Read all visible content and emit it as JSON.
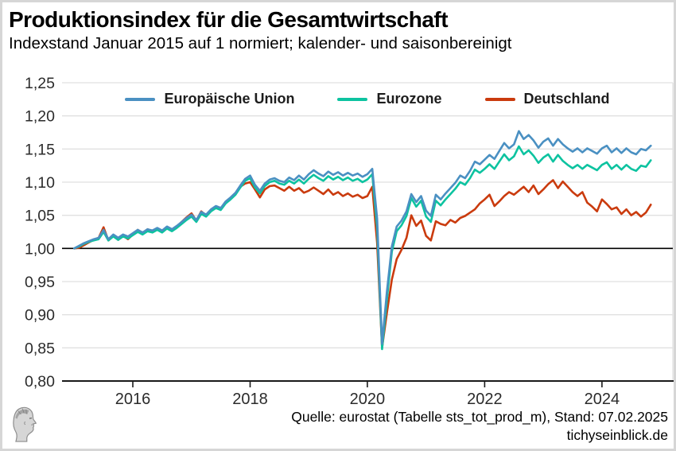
{
  "header": {
    "title": "Produktionsindex für die Gesamtwirtschaft",
    "subtitle": "Indexstand Januar 2015 auf 1 normiert; kalender- und saisonbereinigt"
  },
  "footer": {
    "source": "Quelle: eurostat (Tabelle sts_tot_prod_m), Stand: 07.02.2025",
    "site": "tichyseinblick.de",
    "logo": "classical-head-engraving"
  },
  "chart_data": {
    "type": "line",
    "title": "Produktionsindex für die Gesamtwirtschaft",
    "frequency": "monthly",
    "x_start": "2015-01",
    "x_end": "2024-11",
    "ylim": [
      0.8,
      1.25
    ],
    "baseline": 1.0,
    "grid": "horizontal",
    "legend_position": "top-center",
    "y_ticks": [
      {
        "label": "1,25",
        "v": 1.25
      },
      {
        "label": "1,20",
        "v": 1.2
      },
      {
        "label": "1,15",
        "v": 1.15
      },
      {
        "label": "1,10",
        "v": 1.1
      },
      {
        "label": "1,05",
        "v": 1.05
      },
      {
        "label": "1,00",
        "v": 1.0
      },
      {
        "label": "0,95",
        "v": 0.95
      },
      {
        "label": "0,90",
        "v": 0.9
      },
      {
        "label": "0,85",
        "v": 0.85
      },
      {
        "label": "0,80",
        "v": 0.8
      }
    ],
    "x_ticks": [
      {
        "label": "2016",
        "year": 2016
      },
      {
        "label": "2018",
        "year": 2018
      },
      {
        "label": "2020",
        "year": 2020
      },
      {
        "label": "2022",
        "year": 2022
      },
      {
        "label": "2024",
        "year": 2024
      }
    ],
    "series": [
      {
        "name": "Europäische Union",
        "color": "#4a90c2",
        "values": [
          1.0,
          1.004,
          1.008,
          1.011,
          1.014,
          1.016,
          1.028,
          1.014,
          1.021,
          1.016,
          1.021,
          1.018,
          1.023,
          1.028,
          1.024,
          1.029,
          1.027,
          1.031,
          1.027,
          1.033,
          1.029,
          1.034,
          1.04,
          1.046,
          1.051,
          1.043,
          1.055,
          1.051,
          1.059,
          1.064,
          1.061,
          1.071,
          1.077,
          1.084,
          1.095,
          1.105,
          1.11,
          1.096,
          1.087,
          1.098,
          1.104,
          1.106,
          1.102,
          1.1,
          1.107,
          1.103,
          1.11,
          1.104,
          1.112,
          1.118,
          1.113,
          1.109,
          1.116,
          1.111,
          1.115,
          1.11,
          1.114,
          1.11,
          1.113,
          1.108,
          1.112,
          1.12,
          1.045,
          0.856,
          0.935,
          1.003,
          1.033,
          1.042,
          1.056,
          1.082,
          1.07,
          1.079,
          1.057,
          1.049,
          1.081,
          1.074,
          1.083,
          1.091,
          1.099,
          1.11,
          1.106,
          1.117,
          1.131,
          1.127,
          1.134,
          1.141,
          1.135,
          1.147,
          1.159,
          1.151,
          1.157,
          1.177,
          1.165,
          1.171,
          1.163,
          1.152,
          1.161,
          1.166,
          1.155,
          1.165,
          1.157,
          1.151,
          1.146,
          1.151,
          1.145,
          1.151,
          1.147,
          1.143,
          1.151,
          1.155,
          1.145,
          1.151,
          1.144,
          1.151,
          1.145,
          1.142,
          1.15,
          1.148,
          1.155
        ]
      },
      {
        "name": "Eurozone",
        "color": "#0dc3a0",
        "values": [
          1.0,
          1.003,
          1.007,
          1.01,
          1.012,
          1.014,
          1.025,
          1.012,
          1.018,
          1.013,
          1.018,
          1.015,
          1.02,
          1.025,
          1.021,
          1.026,
          1.024,
          1.028,
          1.024,
          1.03,
          1.026,
          1.031,
          1.037,
          1.043,
          1.048,
          1.04,
          1.052,
          1.048,
          1.056,
          1.061,
          1.058,
          1.068,
          1.074,
          1.081,
          1.092,
          1.102,
          1.106,
          1.092,
          1.083,
          1.094,
          1.1,
          1.102,
          1.098,
          1.096,
          1.102,
          1.098,
          1.104,
          1.098,
          1.105,
          1.111,
          1.106,
          1.102,
          1.109,
          1.104,
          1.108,
          1.103,
          1.107,
          1.102,
          1.105,
          1.1,
          1.104,
          1.112,
          1.03,
          0.848,
          0.923,
          0.995,
          1.026,
          1.035,
          1.049,
          1.076,
          1.063,
          1.072,
          1.048,
          1.04,
          1.072,
          1.065,
          1.074,
          1.082,
          1.09,
          1.1,
          1.096,
          1.106,
          1.119,
          1.114,
          1.12,
          1.127,
          1.12,
          1.131,
          1.142,
          1.133,
          1.139,
          1.154,
          1.142,
          1.148,
          1.14,
          1.129,
          1.137,
          1.142,
          1.131,
          1.141,
          1.132,
          1.126,
          1.121,
          1.126,
          1.12,
          1.126,
          1.122,
          1.118,
          1.126,
          1.13,
          1.12,
          1.126,
          1.119,
          1.126,
          1.12,
          1.117,
          1.125,
          1.123,
          1.133
        ]
      },
      {
        "name": "Deutschland",
        "color": "#ca3b0e",
        "values": [
          1.0,
          1.001,
          1.005,
          1.009,
          1.013,
          1.016,
          1.032,
          1.012,
          1.02,
          1.013,
          1.019,
          1.014,
          1.021,
          1.028,
          1.023,
          1.029,
          1.025,
          1.03,
          1.025,
          1.032,
          1.027,
          1.033,
          1.04,
          1.047,
          1.053,
          1.042,
          1.056,
          1.05,
          1.058,
          1.063,
          1.06,
          1.07,
          1.076,
          1.082,
          1.093,
          1.098,
          1.1,
          1.089,
          1.077,
          1.089,
          1.094,
          1.095,
          1.091,
          1.087,
          1.093,
          1.087,
          1.091,
          1.084,
          1.087,
          1.092,
          1.087,
          1.082,
          1.089,
          1.081,
          1.085,
          1.079,
          1.083,
          1.078,
          1.081,
          1.076,
          1.079,
          1.093,
          1.008,
          0.85,
          0.903,
          0.953,
          0.984,
          0.998,
          1.016,
          1.05,
          1.034,
          1.042,
          1.019,
          1.012,
          1.041,
          1.037,
          1.035,
          1.043,
          1.039,
          1.046,
          1.049,
          1.054,
          1.059,
          1.068,
          1.074,
          1.081,
          1.064,
          1.071,
          1.079,
          1.085,
          1.081,
          1.087,
          1.093,
          1.085,
          1.095,
          1.082,
          1.089,
          1.097,
          1.103,
          1.091,
          1.101,
          1.093,
          1.085,
          1.079,
          1.085,
          1.069,
          1.063,
          1.056,
          1.074,
          1.067,
          1.059,
          1.062,
          1.052,
          1.059,
          1.05,
          1.055,
          1.048,
          1.054,
          1.066
        ]
      }
    ]
  }
}
